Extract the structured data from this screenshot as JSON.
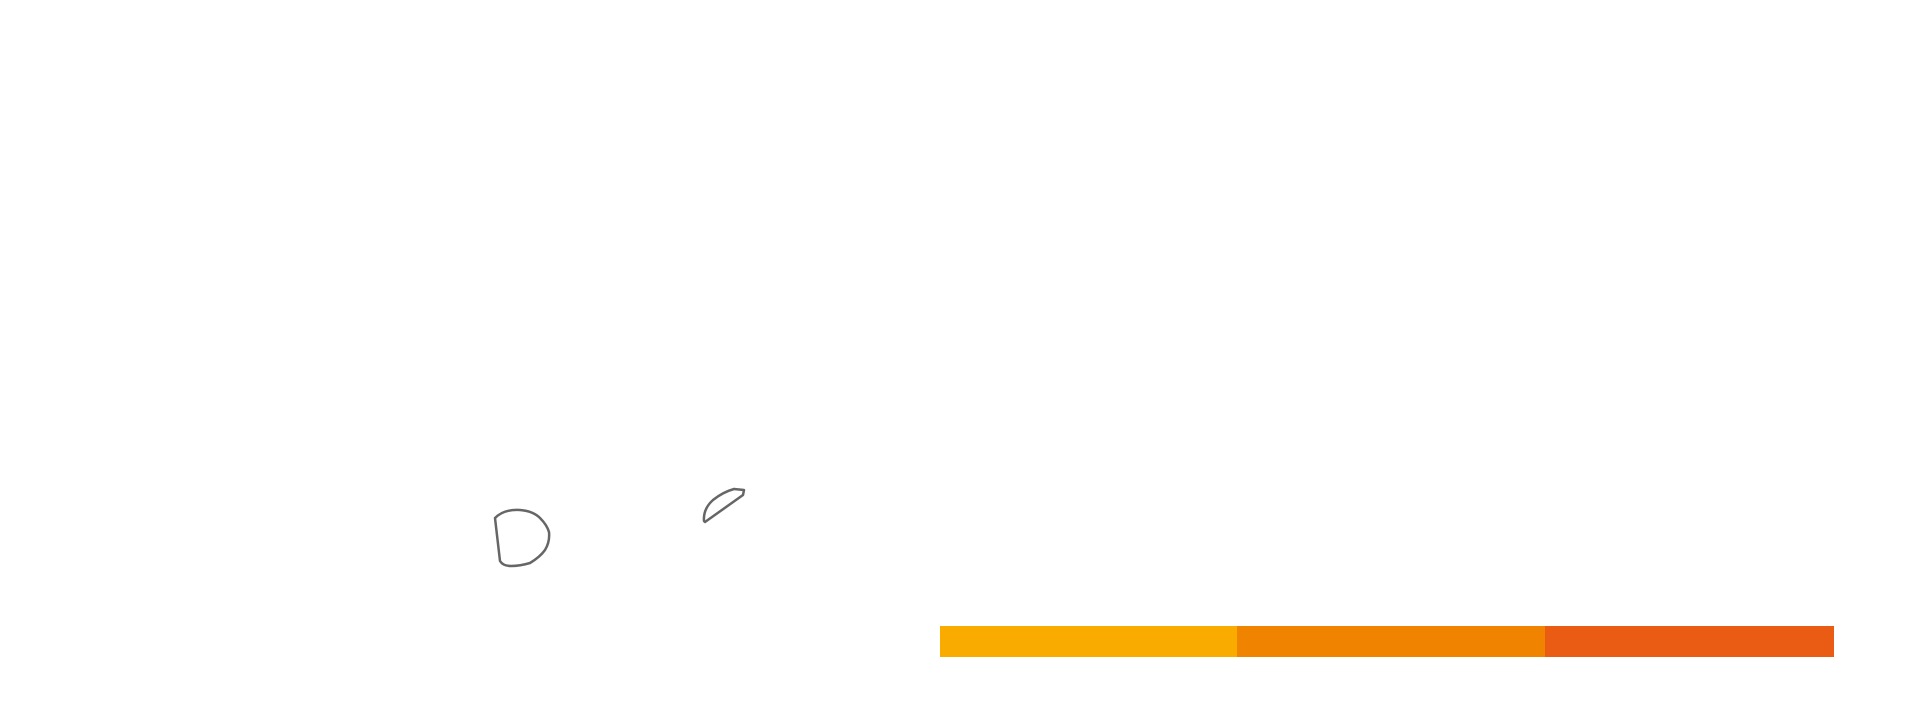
{
  "shapes": [
    {
      "name": "rounded-d-shape",
      "stroke_color": "#666666"
    },
    {
      "name": "leaf-sliver-shape",
      "stroke_color": "#666666"
    }
  ],
  "color_bar": {
    "segments": [
      {
        "name": "amber",
        "color": "#f9ab00"
      },
      {
        "name": "orange",
        "color": "#f08300"
      },
      {
        "name": "red-orange",
        "color": "#ea5b13"
      }
    ]
  }
}
